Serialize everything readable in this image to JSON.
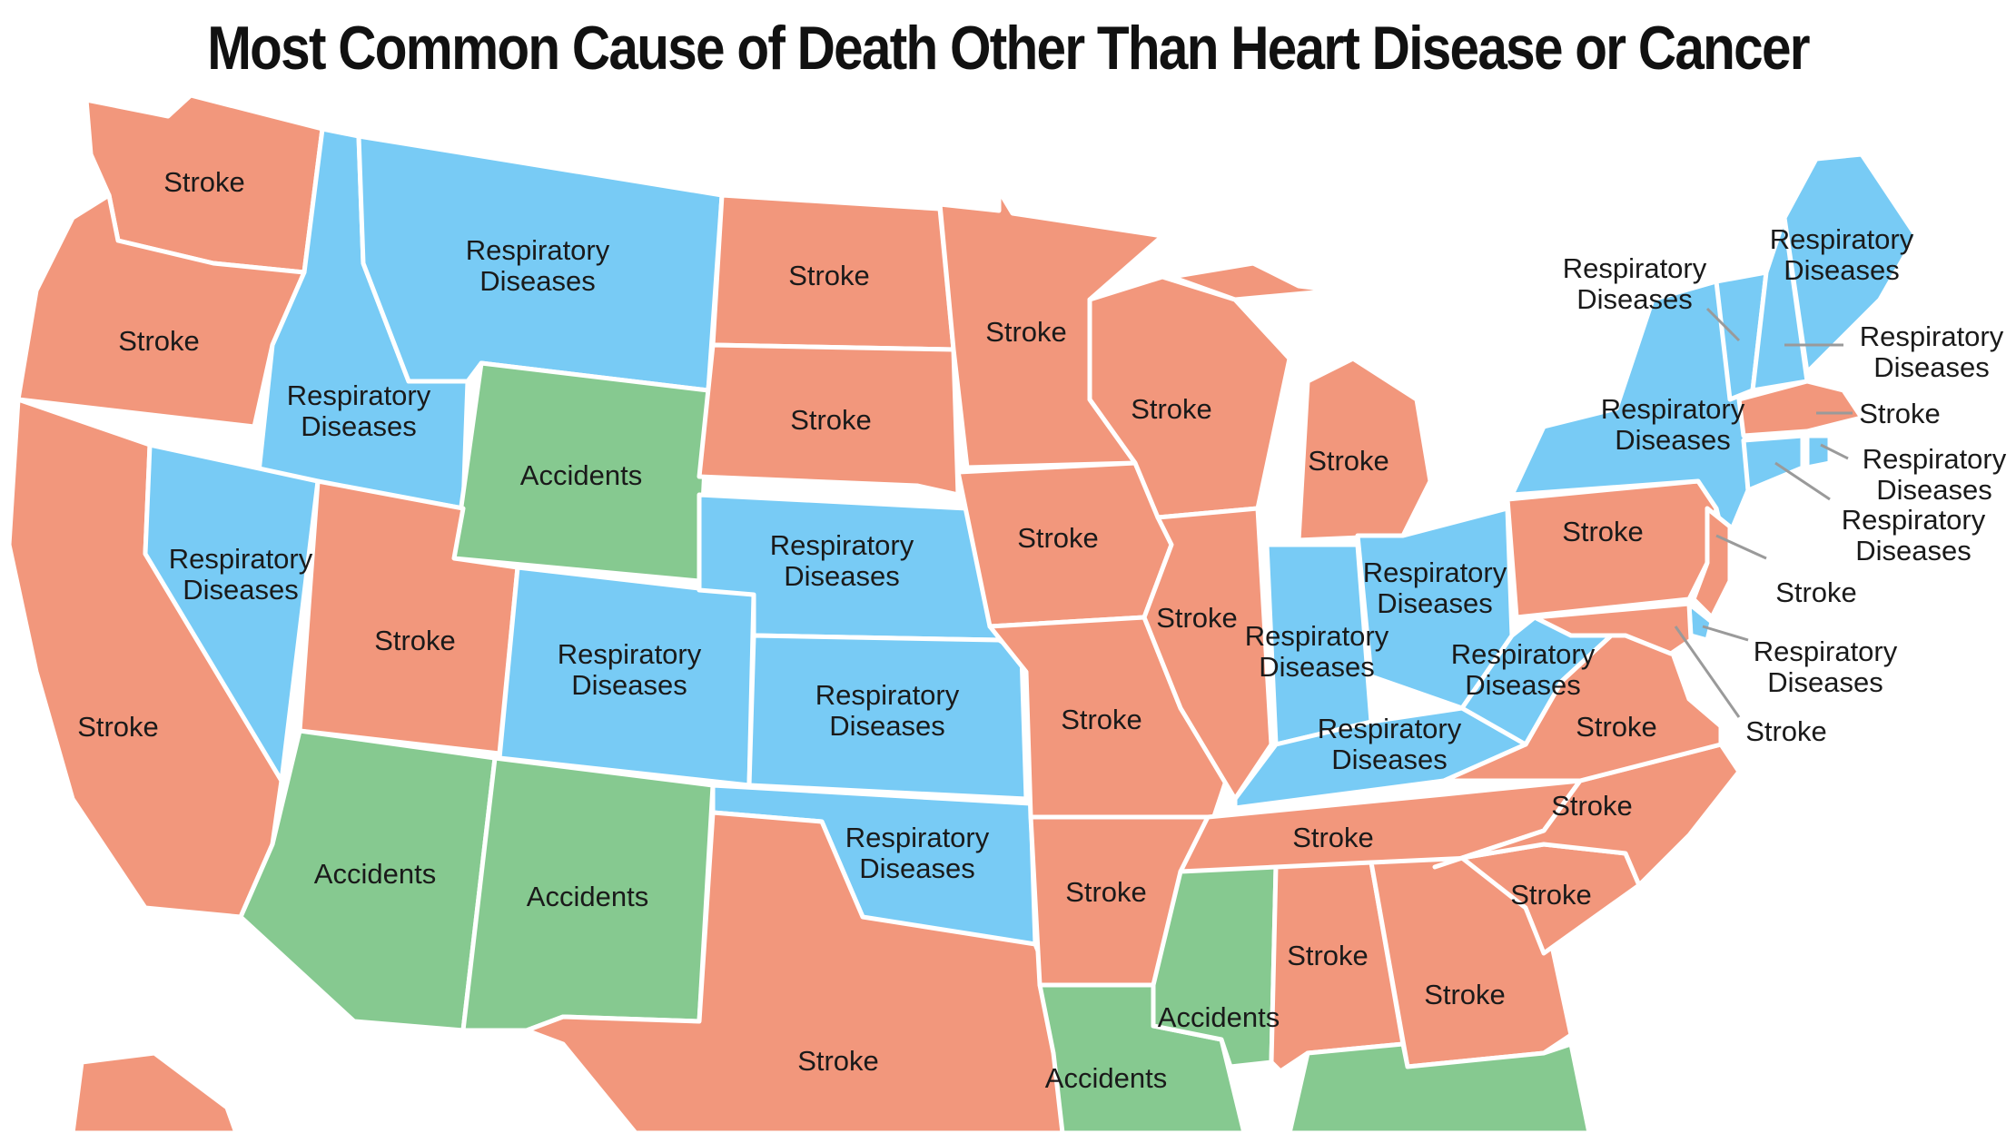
{
  "title": "Most Common Cause of Death Other Than Heart Disease or Cancer",
  "colors": {
    "stroke": "#F2977C",
    "respiratory": "#78CBF5",
    "accidents": "#86C990",
    "background": "#ffffff",
    "borders": "#ffffff"
  },
  "labels": {
    "stroke": "Stroke",
    "respiratory_line1": "Respiratory",
    "respiratory_line2": "Diseases",
    "accidents": "Accidents"
  },
  "states": [
    {
      "id": "washington",
      "category": "stroke"
    },
    {
      "id": "oregon",
      "category": "stroke"
    },
    {
      "id": "california",
      "category": "stroke"
    },
    {
      "id": "idaho",
      "category": "respiratory"
    },
    {
      "id": "nevada",
      "category": "respiratory"
    },
    {
      "id": "montana",
      "category": "respiratory"
    },
    {
      "id": "wyoming",
      "category": "accidents"
    },
    {
      "id": "utah",
      "category": "stroke"
    },
    {
      "id": "colorado",
      "category": "respiratory"
    },
    {
      "id": "arizona",
      "category": "accidents"
    },
    {
      "id": "new-mexico",
      "category": "accidents"
    },
    {
      "id": "north-dakota",
      "category": "stroke"
    },
    {
      "id": "south-dakota",
      "category": "stroke"
    },
    {
      "id": "nebraska",
      "category": "respiratory"
    },
    {
      "id": "kansas",
      "category": "respiratory"
    },
    {
      "id": "oklahoma",
      "category": "respiratory"
    },
    {
      "id": "texas",
      "category": "stroke"
    },
    {
      "id": "minnesota",
      "category": "stroke"
    },
    {
      "id": "iowa",
      "category": "stroke"
    },
    {
      "id": "missouri",
      "category": "stroke"
    },
    {
      "id": "arkansas",
      "category": "stroke"
    },
    {
      "id": "louisiana",
      "category": "accidents"
    },
    {
      "id": "wisconsin",
      "category": "stroke"
    },
    {
      "id": "illinois",
      "category": "stroke"
    },
    {
      "id": "michigan",
      "category": "stroke"
    },
    {
      "id": "indiana",
      "category": "respiratory"
    },
    {
      "id": "ohio",
      "category": "respiratory"
    },
    {
      "id": "kentucky",
      "category": "respiratory"
    },
    {
      "id": "tennessee",
      "category": "stroke"
    },
    {
      "id": "mississippi",
      "category": "accidents"
    },
    {
      "id": "alabama",
      "category": "stroke"
    },
    {
      "id": "georgia",
      "category": "stroke"
    },
    {
      "id": "florida",
      "category": "accidents"
    },
    {
      "id": "south-carolina",
      "category": "stroke"
    },
    {
      "id": "north-carolina",
      "category": "stroke"
    },
    {
      "id": "virginia",
      "category": "stroke"
    },
    {
      "id": "west-virginia",
      "category": "respiratory"
    },
    {
      "id": "pennsylvania",
      "category": "stroke"
    },
    {
      "id": "new-york",
      "category": "respiratory"
    },
    {
      "id": "vermont",
      "category": "respiratory"
    },
    {
      "id": "new-hampshire",
      "category": "respiratory"
    },
    {
      "id": "maine",
      "category": "respiratory"
    },
    {
      "id": "massachusetts",
      "category": "stroke"
    },
    {
      "id": "rhode-island",
      "category": "respiratory"
    },
    {
      "id": "connecticut",
      "category": "respiratory"
    },
    {
      "id": "new-jersey",
      "category": "stroke"
    },
    {
      "id": "delaware",
      "category": "respiratory"
    },
    {
      "id": "maryland",
      "category": "stroke"
    },
    {
      "id": "alaska",
      "category": "stroke"
    }
  ]
}
